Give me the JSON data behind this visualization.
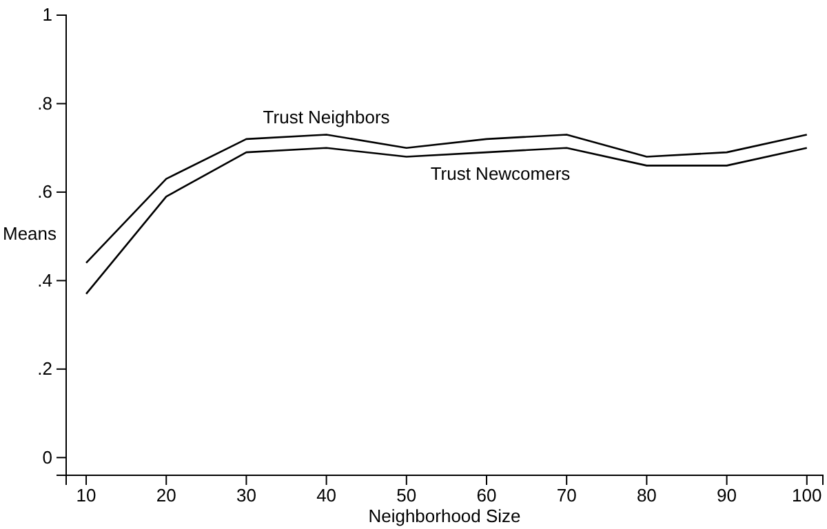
{
  "chart_data": {
    "type": "line",
    "xlabel": "Neighborhood Size",
    "ylabel": "Means",
    "x": [
      10,
      20,
      30,
      40,
      50,
      60,
      70,
      80,
      90,
      100
    ],
    "series": [
      {
        "name": "Trust Neighbors",
        "color": "#000000",
        "values": [
          0.44,
          0.63,
          0.72,
          0.73,
          0.7,
          0.72,
          0.73,
          0.68,
          0.69,
          0.73
        ]
      },
      {
        "name": "Trust Newcomers",
        "color": "#000000",
        "values": [
          0.37,
          0.59,
          0.69,
          0.7,
          0.68,
          0.69,
          0.7,
          0.66,
          0.66,
          0.7
        ]
      }
    ],
    "xlim": [
      7.5,
      102
    ],
    "ylim": [
      -0.04,
      1
    ],
    "xticks": [
      10,
      20,
      30,
      40,
      50,
      60,
      70,
      80,
      90,
      100
    ],
    "yticks": [
      0,
      {
        "value": 0.2,
        "label": ".2"
      },
      {
        "value": 0.4,
        "label": ".4"
      },
      {
        "value": 0.6,
        "label": ".6"
      },
      {
        "value": 0.8,
        "label": ".8"
      },
      1
    ],
    "grid": false,
    "legend": false,
    "marker": "none",
    "line_style": "solid"
  }
}
